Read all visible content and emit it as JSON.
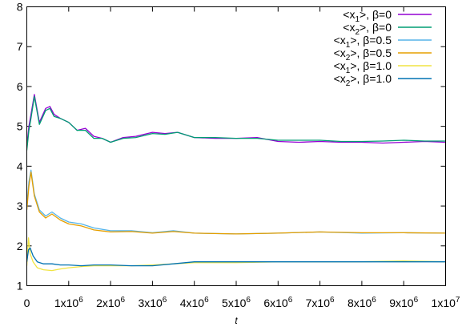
{
  "chart_data": {
    "type": "line",
    "xlabel": "t",
    "xlim": [
      0,
      10000000
    ],
    "ylim": [
      1,
      8
    ],
    "legend_position": "top-right",
    "grid": false,
    "x_tick_labels": [
      {
        "x": 0,
        "base": "0",
        "exp": ""
      },
      {
        "x": 1000000,
        "base": "1x10",
        "exp": "6"
      },
      {
        "x": 2000000,
        "base": "2x10",
        "exp": "6"
      },
      {
        "x": 3000000,
        "base": "3x10",
        "exp": "6"
      },
      {
        "x": 4000000,
        "base": "4x10",
        "exp": "6"
      },
      {
        "x": 5000000,
        "base": "5x10",
        "exp": "6"
      },
      {
        "x": 6000000,
        "base": "6x10",
        "exp": "6"
      },
      {
        "x": 7000000,
        "base": "7x10",
        "exp": "6"
      },
      {
        "x": 8000000,
        "base": "8x10",
        "exp": "6"
      },
      {
        "x": 9000000,
        "base": "9x10",
        "exp": "6"
      },
      {
        "x": 10000000,
        "base": "1x10",
        "exp": "7"
      }
    ],
    "y_ticks": [
      1,
      2,
      3,
      4,
      5,
      6,
      7,
      8
    ],
    "y_tick_labels": [
      "1",
      "2",
      "3",
      "4",
      "5",
      "6",
      "7",
      "8"
    ],
    "series": [
      {
        "name": "<x1>, β=0",
        "label_sub": "1",
        "label_beta": "β=0",
        "color": "#9400d3",
        "x": [
          0,
          50000,
          100000,
          180000,
          300000,
          450000,
          550000,
          650000,
          800000,
          1000000,
          1200000,
          1400000,
          1600000,
          1800000,
          2000000,
          2300000,
          2600000,
          3000000,
          3300000,
          3600000,
          4000000,
          4500000,
          5000000,
          5500000,
          6000000,
          6500000,
          7000000,
          7500000,
          8000000,
          8500000,
          9000000,
          9500000,
          10000000
        ],
        "y": [
          4.5,
          5.0,
          5.3,
          5.8,
          5.1,
          5.45,
          5.5,
          5.3,
          5.2,
          5.1,
          4.9,
          4.95,
          4.75,
          4.7,
          4.6,
          4.72,
          4.75,
          4.85,
          4.82,
          4.85,
          4.72,
          4.7,
          4.7,
          4.72,
          4.62,
          4.6,
          4.62,
          4.6,
          4.6,
          4.58,
          4.6,
          4.62,
          4.6
        ]
      },
      {
        "name": "<x2>, β=0",
        "label_sub": "2",
        "label_beta": "β=0",
        "color": "#009e73",
        "x": [
          0,
          50000,
          100000,
          180000,
          300000,
          450000,
          550000,
          650000,
          800000,
          1000000,
          1200000,
          1400000,
          1600000,
          1800000,
          2000000,
          2300000,
          2600000,
          3000000,
          3300000,
          3600000,
          4000000,
          4500000,
          5000000,
          5500000,
          6000000,
          6500000,
          7000000,
          7500000,
          8000000,
          8500000,
          9000000,
          9500000,
          10000000
        ],
        "y": [
          4.4,
          4.9,
          5.2,
          5.75,
          5.05,
          5.4,
          5.45,
          5.25,
          5.2,
          5.1,
          4.9,
          4.9,
          4.7,
          4.7,
          4.6,
          4.7,
          4.72,
          4.82,
          4.8,
          4.85,
          4.72,
          4.72,
          4.7,
          4.7,
          4.65,
          4.65,
          4.65,
          4.62,
          4.62,
          4.63,
          4.65,
          4.63,
          4.63
        ]
      },
      {
        "name": "<x1>, β=0.5",
        "label_sub": "1",
        "label_beta": "β=0.5",
        "color": "#56b4e9",
        "x": [
          0,
          50000,
          100000,
          180000,
          300000,
          450000,
          600000,
          800000,
          1000000,
          1300000,
          1600000,
          2000000,
          2500000,
          3000000,
          3500000,
          4000000,
          5000000,
          6000000,
          7000000,
          8000000,
          9000000,
          10000000
        ],
        "y": [
          3.0,
          3.6,
          3.9,
          3.3,
          2.9,
          2.75,
          2.85,
          2.7,
          2.6,
          2.55,
          2.45,
          2.38,
          2.38,
          2.33,
          2.38,
          2.32,
          2.3,
          2.32,
          2.35,
          2.32,
          2.33,
          2.32
        ]
      },
      {
        "name": "<x2>, β=0.5",
        "label_sub": "2",
        "label_beta": "β=0.5",
        "color": "#e69f00",
        "x": [
          0,
          50000,
          100000,
          180000,
          300000,
          450000,
          600000,
          800000,
          1000000,
          1300000,
          1600000,
          2000000,
          2500000,
          3000000,
          3500000,
          4000000,
          5000000,
          6000000,
          7000000,
          8000000,
          9000000,
          10000000
        ],
        "y": [
          2.9,
          3.5,
          3.85,
          3.25,
          2.85,
          2.7,
          2.8,
          2.65,
          2.55,
          2.5,
          2.4,
          2.35,
          2.36,
          2.32,
          2.36,
          2.32,
          2.3,
          2.32,
          2.35,
          2.33,
          2.33,
          2.32
        ]
      },
      {
        "name": "<x1>, β=1.0",
        "label_sub": "1",
        "label_beta": "β=1.0",
        "color": "#f0e442",
        "x": [
          0,
          40000,
          80000,
          150000,
          250000,
          400000,
          600000,
          800000,
          1000000,
          1300000,
          1600000,
          2000000,
          2500000,
          3000000,
          3500000,
          4000000,
          5000000,
          6000000,
          7000000,
          8000000,
          9000000,
          10000000
        ],
        "y": [
          1.5,
          2.2,
          1.8,
          1.6,
          1.45,
          1.4,
          1.38,
          1.42,
          1.45,
          1.48,
          1.5,
          1.5,
          1.5,
          1.52,
          1.55,
          1.58,
          1.58,
          1.6,
          1.6,
          1.6,
          1.62,
          1.6
        ]
      },
      {
        "name": "<x2>, β=1.0",
        "label_sub": "2",
        "label_beta": "β=1.0",
        "color": "#0072b2",
        "x": [
          0,
          40000,
          80000,
          150000,
          250000,
          400000,
          600000,
          800000,
          1000000,
          1300000,
          1600000,
          2000000,
          2500000,
          3000000,
          3500000,
          4000000,
          5000000,
          6000000,
          7000000,
          8000000,
          9000000,
          10000000
        ],
        "y": [
          1.6,
          1.9,
          1.95,
          1.75,
          1.6,
          1.55,
          1.55,
          1.52,
          1.52,
          1.5,
          1.52,
          1.52,
          1.5,
          1.5,
          1.55,
          1.6,
          1.6,
          1.6,
          1.6,
          1.6,
          1.6,
          1.6
        ]
      }
    ]
  }
}
